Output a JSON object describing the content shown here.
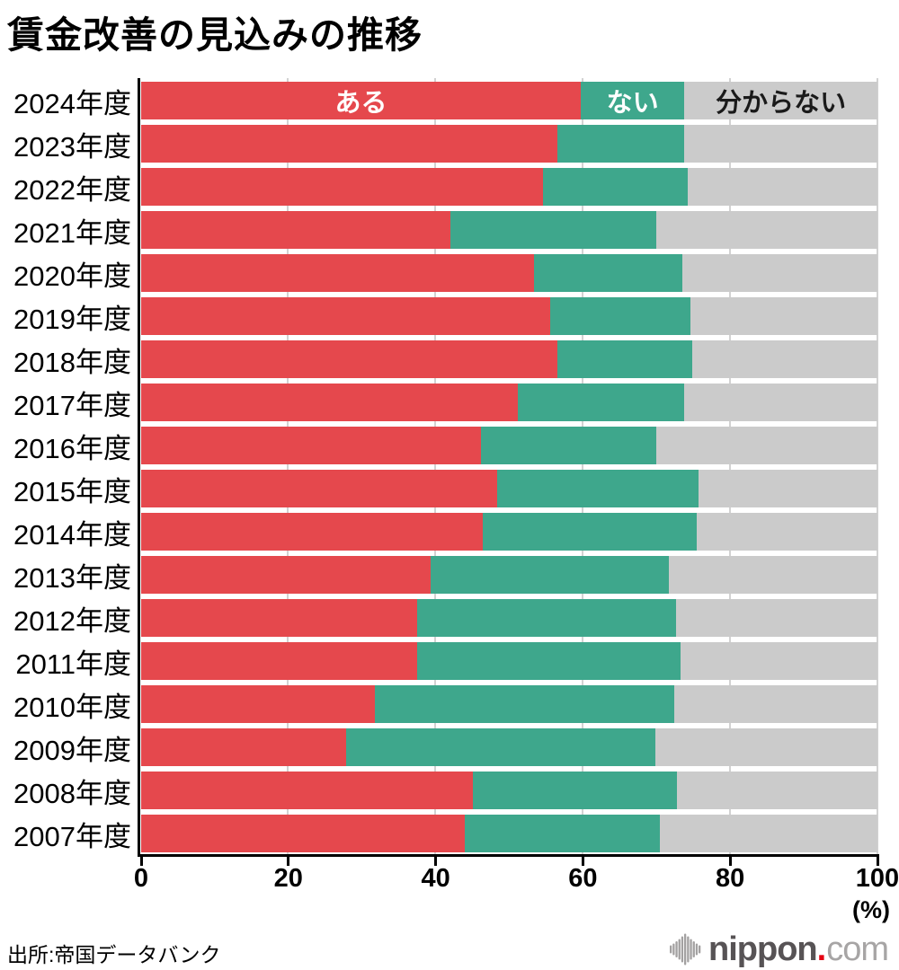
{
  "title": "賃金改善の見込みの推移",
  "footer": {
    "source": "出所:帝国データバンク",
    "logo": {
      "icon": "soundwave-bars-icon",
      "main": "nippon",
      "dot": ".",
      "tld": "com",
      "main_color": "#575355",
      "dot_color": "#e50012",
      "tld_color": "#a7a5a5",
      "icon_color": "#a3a1a1"
    }
  },
  "chart_data": {
    "type": "bar",
    "orientation": "horizontal",
    "stacked": true,
    "title": "賃金改善の見込みの推移",
    "unit": "(%)",
    "xlim": [
      0,
      100
    ],
    "x_ticks": [
      0,
      20,
      40,
      60,
      80,
      100
    ],
    "grid": true,
    "legend_position": "inside-first-bar",
    "categories": [
      "2024年度",
      "2023年度",
      "2022年度",
      "2021年度",
      "2020年度",
      "2019年度",
      "2018年度",
      "2017年度",
      "2016年度",
      "2015年度",
      "2014年度",
      "2013年度",
      "2012年度",
      "2011年度",
      "2010年度",
      "2009年度",
      "2008年度",
      "2007年度"
    ],
    "series": [
      {
        "name": "ある",
        "color": "#e5484d",
        "label_color": "#ffffff",
        "values": [
          59.7,
          56.5,
          54.6,
          42.0,
          53.3,
          55.5,
          56.5,
          51.2,
          46.2,
          48.3,
          46.4,
          39.3,
          37.5,
          37.5,
          31.7,
          27.8,
          45.0,
          43.9
        ]
      },
      {
        "name": "ない",
        "color": "#3ea78c",
        "label_color": "#ffffff",
        "values": [
          14.1,
          17.3,
          19.6,
          28.0,
          20.2,
          19.1,
          18.4,
          22.6,
          23.8,
          27.4,
          29.0,
          32.4,
          35.1,
          35.8,
          40.7,
          42.1,
          27.8,
          26.6
        ]
      },
      {
        "name": "分からない",
        "color": "#cbcbcb",
        "label_color": "#1a1a1a",
        "values": [
          26.2,
          26.2,
          25.8,
          30.0,
          26.5,
          25.4,
          25.1,
          26.2,
          30.0,
          24.3,
          24.6,
          28.3,
          27.4,
          26.7,
          27.6,
          30.1,
          27.2,
          29.5
        ]
      }
    ],
    "colors": {
      "axis": "#000000",
      "gridline": "#d2d2d2",
      "background": "#ffffff"
    }
  }
}
